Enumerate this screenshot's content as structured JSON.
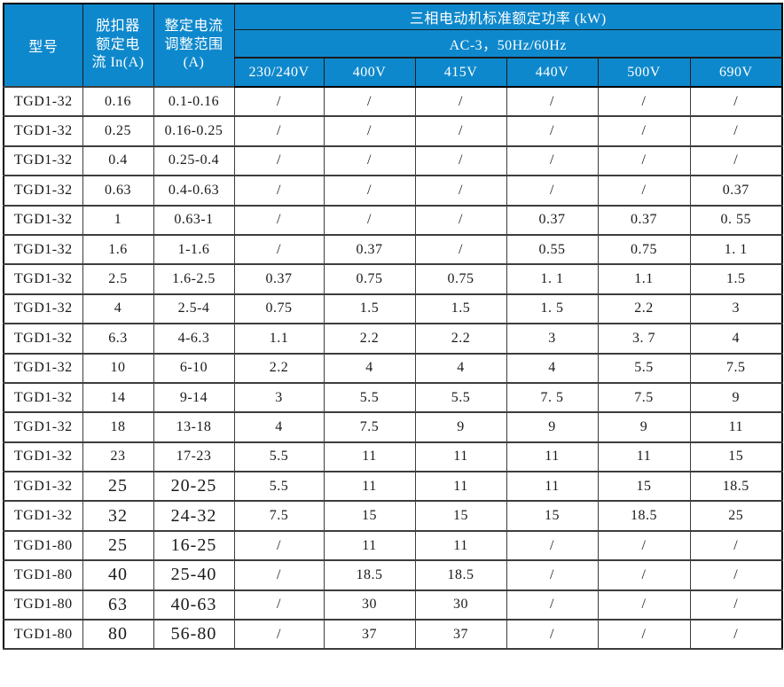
{
  "table": {
    "header": {
      "model_label": "型号",
      "trip_current_label": "脱扣器\n额定电\n流 In(A)",
      "adjust_range_label": "整定电流\n调整范围\n(A)",
      "power_group_label": "三相电动机标准额定功率 (kW)",
      "power_condition_label": "AC-3，50Hz/60Hz",
      "voltage_labels": [
        "230/240V",
        "400V",
        "415V",
        "440V",
        "500V",
        "690V"
      ]
    },
    "rows": [
      {
        "model": "TGD1-32",
        "in_a": "0.16",
        "range": "0.1-0.16",
        "big": false,
        "power": [
          "/",
          "/",
          "/",
          "/",
          "/",
          "/"
        ]
      },
      {
        "model": "TGD1-32",
        "in_a": "0.25",
        "range": "0.16-0.25",
        "big": false,
        "power": [
          "/",
          "/",
          "/",
          "/",
          "/",
          "/"
        ]
      },
      {
        "model": "TGD1-32",
        "in_a": "0.4",
        "range": "0.25-0.4",
        "big": false,
        "power": [
          "/",
          "/",
          "/",
          "/",
          "/",
          "/"
        ]
      },
      {
        "model": "TGD1-32",
        "in_a": "0.63",
        "range": "0.4-0.63",
        "big": false,
        "power": [
          "/",
          "/",
          "/",
          "/",
          "/",
          "0.37"
        ]
      },
      {
        "model": "TGD1-32",
        "in_a": "1",
        "range": "0.63-1",
        "big": false,
        "power": [
          "/",
          "/",
          "/",
          "0.37",
          "0.37",
          "0. 55"
        ]
      },
      {
        "model": "TGD1-32",
        "in_a": "1.6",
        "range": "1-1.6",
        "big": false,
        "power": [
          "/",
          "0.37",
          "/",
          "0.55",
          "0.75",
          "1. 1"
        ]
      },
      {
        "model": "TGD1-32",
        "in_a": "2.5",
        "range": "1.6-2.5",
        "big": false,
        "power": [
          "0.37",
          "0.75",
          "0.75",
          "1. 1",
          "1.1",
          "1.5"
        ]
      },
      {
        "model": "TGD1-32",
        "in_a": "4",
        "range": "2.5-4",
        "big": false,
        "power": [
          "0.75",
          "1.5",
          "1.5",
          "1. 5",
          "2.2",
          "3"
        ]
      },
      {
        "model": "TGD1-32",
        "in_a": "6.3",
        "range": "4-6.3",
        "big": false,
        "power": [
          "1.1",
          "2.2",
          "2.2",
          "3",
          "3. 7",
          "4"
        ]
      },
      {
        "model": "TGD1-32",
        "in_a": "10",
        "range": "6-10",
        "big": false,
        "power": [
          "2.2",
          "4",
          "4",
          "4",
          "5.5",
          "7.5"
        ]
      },
      {
        "model": "TGD1-32",
        "in_a": "14",
        "range": "9-14",
        "big": false,
        "power": [
          "3",
          "5.5",
          "5.5",
          "7. 5",
          "7.5",
          "9"
        ]
      },
      {
        "model": "TGD1-32",
        "in_a": "18",
        "range": "13-18",
        "big": false,
        "power": [
          "4",
          "7.5",
          "9",
          "9",
          "9",
          "11"
        ]
      },
      {
        "model": "TGD1-32",
        "in_a": "23",
        "range": "17-23",
        "big": false,
        "power": [
          "5.5",
          "11",
          "11",
          "11",
          "11",
          "15"
        ]
      },
      {
        "model": "TGD1-32",
        "in_a": "25",
        "range": "20-25",
        "big": true,
        "power": [
          "5.5",
          "11",
          "11",
          "11",
          "15",
          "18.5"
        ]
      },
      {
        "model": "TGD1-32",
        "in_a": "32",
        "range": "24-32",
        "big": true,
        "power": [
          "7.5",
          "15",
          "15",
          "15",
          "18.5",
          "25"
        ]
      },
      {
        "model": "TGD1-80",
        "in_a": "25",
        "range": "16-25",
        "big": true,
        "power": [
          "/",
          "11",
          "11",
          "/",
          "/",
          "/"
        ]
      },
      {
        "model": "TGD1-80",
        "in_a": "40",
        "range": "25-40",
        "big": true,
        "power": [
          "/",
          "18.5",
          "18.5",
          "/",
          "/",
          "/"
        ]
      },
      {
        "model": "TGD1-80",
        "in_a": "63",
        "range": "40-63",
        "big": true,
        "power": [
          "/",
          "30",
          "30",
          "/",
          "/",
          "/"
        ]
      },
      {
        "model": "TGD1-80",
        "in_a": "80",
        "range": "56-80",
        "big": true,
        "power": [
          "/",
          "37",
          "37",
          "/",
          "/",
          "/"
        ]
      }
    ]
  },
  "colors": {
    "header_bg": "#0E88CC",
    "header_text": "#FFFFFF",
    "cell_text": "#1A1A1A",
    "grid_border": "#3D3D3D",
    "outer_border": "#000000"
  }
}
